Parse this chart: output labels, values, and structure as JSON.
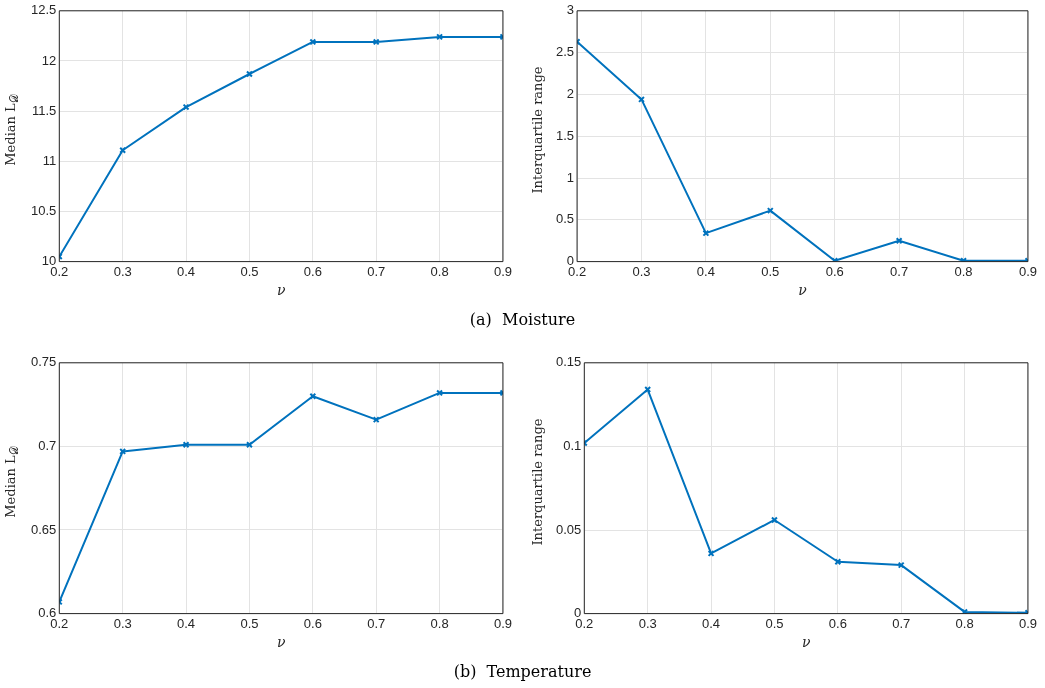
{
  "chart_data": [
    {
      "type": "line",
      "xlabel": "ν",
      "ylabel": "Median L$_{𝒟}$",
      "x": [
        0.2,
        0.3,
        0.4,
        0.5,
        0.6,
        0.7,
        0.8,
        0.9
      ],
      "series": [
        {
          "color": "#0072bd",
          "values": [
            10.05,
            11.11,
            11.54,
            11.87,
            12.19,
            12.19,
            12.24,
            12.24
          ]
        }
      ],
      "xlim": [
        0.2,
        0.9
      ],
      "xticks": [
        0.2,
        0.3,
        0.4,
        0.5,
        0.6,
        0.7,
        0.8,
        0.9
      ],
      "ylim": [
        10,
        12.5
      ],
      "yticks": [
        10,
        10.5,
        11,
        11.5,
        12,
        12.5
      ],
      "grid": true,
      "marker": "cross",
      "line_style": "solid",
      "annotations": [
        "(a)  Moisture"
      ]
    },
    {
      "type": "line",
      "xlabel": "ν",
      "ylabel": "Interquartile range",
      "x": [
        0.2,
        0.3,
        0.4,
        0.5,
        0.6,
        0.7,
        0.8,
        0.9
      ],
      "series": [
        {
          "color": "#0072bd",
          "values": [
            2.63,
            1.94,
            0.34,
            0.61,
            0.01,
            0.25,
            0.01,
            0.01
          ]
        }
      ],
      "xlim": [
        0.2,
        0.9
      ],
      "xticks": [
        0.2,
        0.3,
        0.4,
        0.5,
        0.6,
        0.7,
        0.8,
        0.9
      ],
      "ylim": [
        0,
        3
      ],
      "yticks": [
        0,
        0.5,
        1,
        1.5,
        2,
        2.5,
        3
      ],
      "grid": true,
      "marker": "cross",
      "line_style": "solid"
    },
    {
      "type": "line",
      "xlabel": "ν",
      "ylabel": "Median L$_{𝒟}$",
      "x": [
        0.2,
        0.3,
        0.4,
        0.5,
        0.6,
        0.7,
        0.8,
        0.9
      ],
      "series": [
        {
          "color": "#0072bd",
          "values": [
            0.607,
            0.697,
            0.701,
            0.701,
            0.73,
            0.716,
            0.732,
            0.732
          ]
        }
      ],
      "xlim": [
        0.2,
        0.9
      ],
      "xticks": [
        0.2,
        0.3,
        0.4,
        0.5,
        0.6,
        0.7,
        0.8,
        0.9
      ],
      "ylim": [
        0.6,
        0.75
      ],
      "yticks": [
        {
          "value": 0.6,
          "label": "0.6"
        },
        0.65,
        {
          "value": 0.7,
          "label": "0.7"
        },
        0.75
      ],
      "grid": true,
      "marker": "cross",
      "line_style": "solid",
      "annotations": [
        "(b)  Temperature"
      ]
    },
    {
      "type": "line",
      "xlabel": "ν",
      "ylabel": "Interquartile range",
      "x": [
        0.2,
        0.3,
        0.4,
        0.5,
        0.6,
        0.7,
        0.8,
        0.9
      ],
      "series": [
        {
          "color": "#0072bd",
          "values": [
            0.102,
            0.134,
            0.036,
            0.056,
            0.031,
            0.029,
            0.001,
            0.0005
          ]
        }
      ],
      "xlim": [
        0.2,
        0.9
      ],
      "xticks": [
        0.2,
        0.3,
        0.4,
        0.5,
        0.6,
        0.7,
        0.8,
        0.9
      ],
      "ylim": [
        0,
        0.15
      ],
      "yticks": [
        0,
        {
          "value": 0.05,
          "label": "0.05"
        },
        {
          "value": 0.1,
          "label": "0.1"
        },
        0.15
      ],
      "grid": true,
      "marker": "cross",
      "line_style": "solid"
    }
  ]
}
